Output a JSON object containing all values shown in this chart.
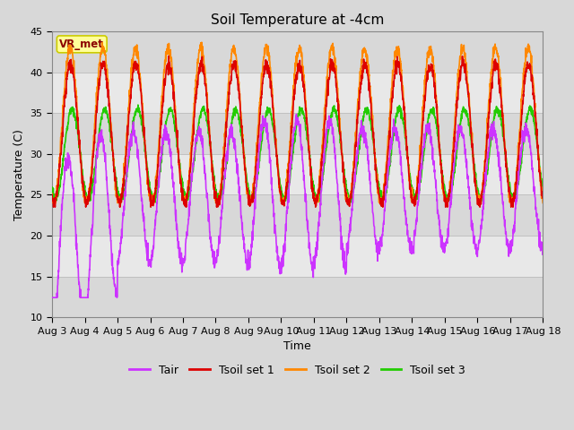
{
  "title": "Soil Temperature at -4cm",
  "xlabel": "Time",
  "ylabel": "Temperature (C)",
  "ylim": [
    10,
    45
  ],
  "n_days": 15,
  "x_tick_labels": [
    "Aug 3",
    "Aug 4",
    "Aug 5",
    "Aug 6",
    "Aug 7",
    "Aug 8",
    "Aug 9",
    "Aug 10",
    "Aug 11",
    "Aug 12",
    "Aug 13",
    "Aug 14",
    "Aug 15",
    "Aug 16",
    "Aug 17",
    "Aug 18"
  ],
  "background_color": "#d8d8d8",
  "plot_bg_color": "#d8d8d8",
  "band_colors": [
    "#d8d8d8",
    "#e8e8e8"
  ],
  "grid_line_color": "#c0c0c0",
  "legend_label": "VR_met",
  "legend_box_color": "#ffff99",
  "legend_text_color": "#8b0000",
  "legend_box_edge": "#cccc00",
  "colors": {
    "Tair": "#cc33ff",
    "Tsoil1": "#dd0000",
    "Tsoil2": "#ff8800",
    "Tsoil3": "#22cc00"
  },
  "line_width": 1.2,
  "yticks": [
    10,
    15,
    20,
    25,
    30,
    35,
    40,
    45
  ]
}
